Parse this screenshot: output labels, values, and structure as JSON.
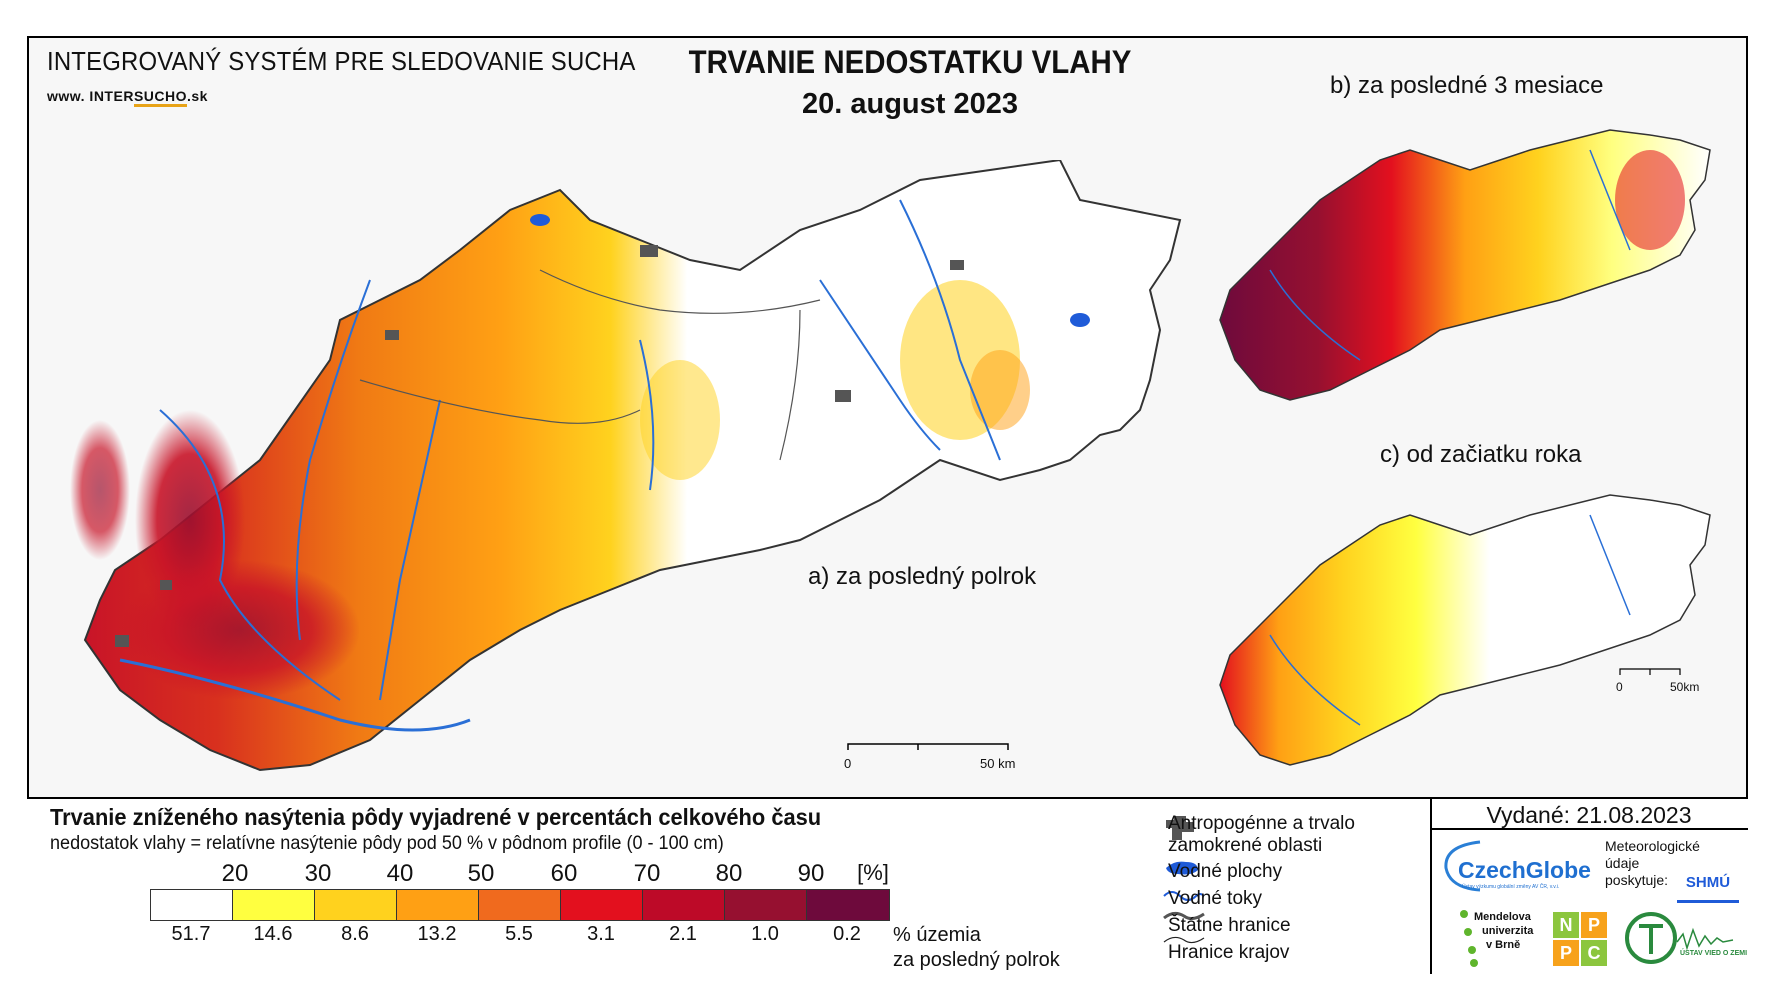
{
  "header": {
    "system_name": "INTEGROVANÝ SYSTÉM PRE SLEDOVANIE SUCHA",
    "url_prefix": "www. INTER",
    "url_mid": "SUCHO",
    "url_suffix": ".sk",
    "title": "TRVANIE NEDOSTATKU VLAHY",
    "date": "20. august 2023"
  },
  "maps": {
    "a_label": "a) za posledný polrok",
    "b_label": "b) za posledné 3 mesiace",
    "c_label": "c) od začiatku roka",
    "scale_main_0": "0",
    "scale_main_50": "50 km",
    "scale_small_0": "0",
    "scale_small_50": "50km"
  },
  "legend": {
    "title": "Trvanie zníženého nasýtenia pôdy vyjadrené v percentách celkového času",
    "subtitle": "nedostatok vlahy = relatívne nasýtenie pôdy pod 50 % v pôdnom profile (0 - 100 cm)",
    "ticks": [
      "20",
      "30",
      "40",
      "50",
      "60",
      "70",
      "80",
      "90",
      "[%]"
    ],
    "colors": [
      "#ffffff",
      "#ffff40",
      "#ffd21e",
      "#ffa014",
      "#f06a1e",
      "#e3101e",
      "#bd0a28",
      "#961030",
      "#6e0a3c"
    ],
    "percentages": [
      "51.7",
      "14.6",
      "8.6",
      "13.2",
      "5.5",
      "3.1",
      "2.1",
      "1.0",
      "0.2"
    ],
    "pct_note_line1": "% územia",
    "pct_note_line2": "za posledný polrok"
  },
  "symbols": {
    "anthropogenic_line1": "Antropogénne a trvalo",
    "anthropogenic_line2": "zamokrené oblasti",
    "water_bodies": "Vodné plochy",
    "water_streams": "Vodné toky",
    "state_border": "Štátne hranice",
    "region_border": "Hranice krajov"
  },
  "credits": {
    "issued": "Vydané: 21.08.2023",
    "czechglobe": "CzechGlobe",
    "czechglobe_sub": "Ústav výzkumu globální změny AV ČR, v.v.i.",
    "meteo_line1": "Meteorologické",
    "meteo_line2": "údaje",
    "meteo_line3": "poskytuje:",
    "shmu": "SHMÚ",
    "mendelu_line1": "Mendelova",
    "mendelu_line2": "univerzita",
    "mendelu_line3": "v Brně",
    "nppc": [
      "N",
      "P",
      "P",
      "C"
    ],
    "uvz": "ÚSTAV VIED O ZEMI"
  }
}
